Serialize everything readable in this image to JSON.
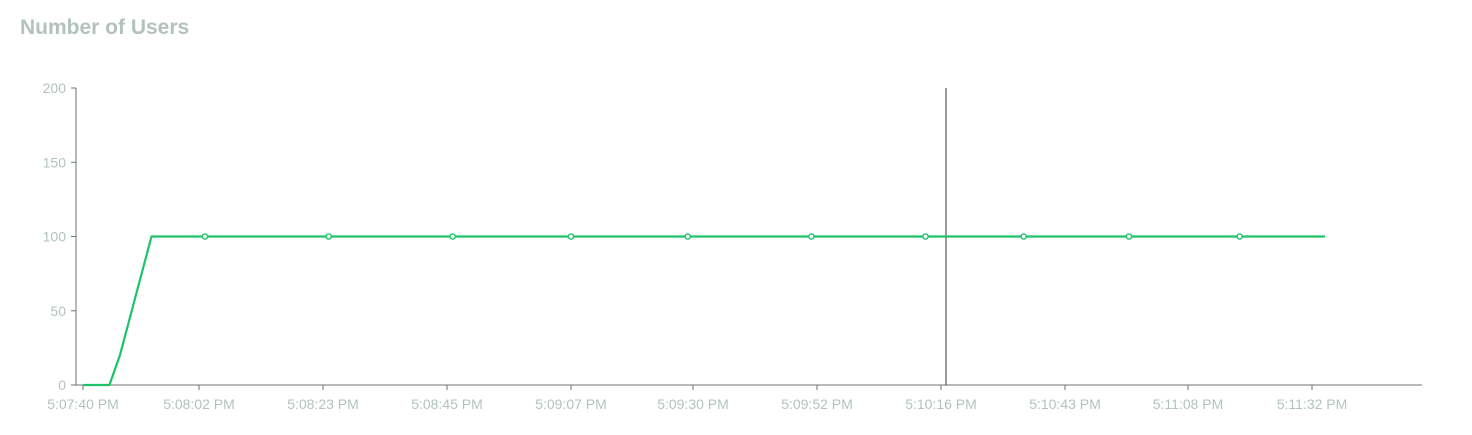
{
  "title": "Number of Users",
  "colors": {
    "series": "#1ec369",
    "axis": "#6e7079",
    "tick_text": "#b3c3bc",
    "title": "#b3c3bc",
    "crosshair": "#333333"
  },
  "chart_data": {
    "type": "line",
    "title": "Number of Users",
    "xlabel": "",
    "ylabel": "",
    "ylim": [
      0,
      200
    ],
    "y_ticks": [
      0,
      50,
      100,
      150,
      200
    ],
    "x_ticks": [
      "5:07:40 PM",
      "5:08:02 PM",
      "5:08:23 PM",
      "5:08:45 PM",
      "5:09:07 PM",
      "5:09:30 PM",
      "5:09:52 PM",
      "5:10:16 PM",
      "5:10:43 PM",
      "5:11:08 PM",
      "5:11:32 PM"
    ],
    "grid": false,
    "legend": "none",
    "crosshair_at": "5:10:16 PM",
    "series": [
      {
        "x": [
          "5:07:40 PM",
          "5:07:42 PM",
          "5:07:45 PM",
          "5:07:47 PM",
          "5:07:50 PM",
          "5:07:53 PM",
          "5:08:03 PM",
          "5:08:24 PM",
          "5:08:46 PM",
          "5:09:07 PM",
          "5:09:29 PM",
          "5:09:51 PM",
          "5:10:13 PM",
          "5:10:34 PM",
          "5:10:56 PM",
          "5:11:18 PM",
          "5:11:35 PM"
        ],
        "values": [
          0,
          0,
          0,
          20,
          60,
          100,
          100,
          100,
          100,
          100,
          100,
          100,
          100,
          100,
          100,
          100,
          100
        ],
        "markers": [
          false,
          false,
          false,
          false,
          false,
          false,
          true,
          true,
          true,
          true,
          true,
          true,
          true,
          true,
          true,
          true,
          false
        ]
      }
    ]
  }
}
